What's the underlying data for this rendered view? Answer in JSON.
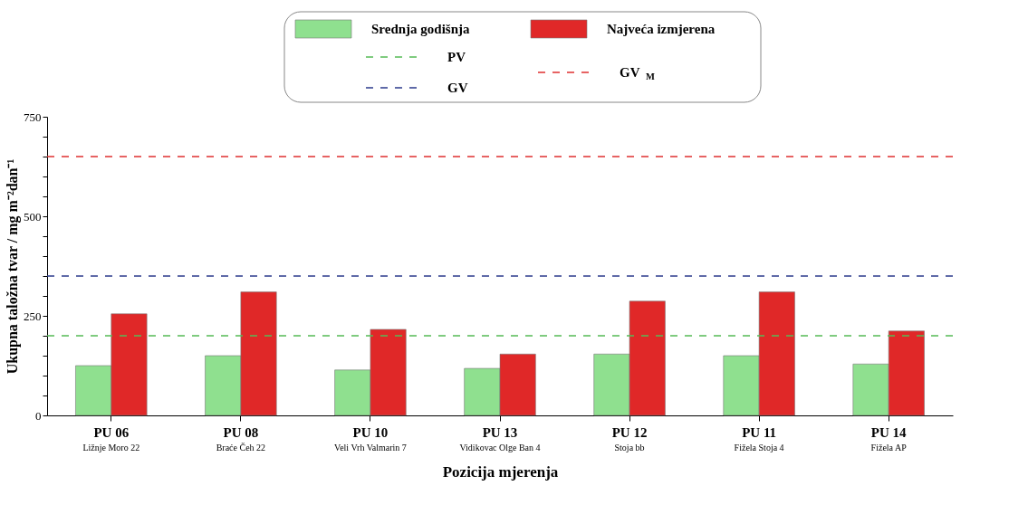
{
  "chart_data": {
    "type": "bar",
    "xlabel": "Pozicija mjerenja",
    "ylabel": "Ukupna taložna tvar / mg m⁻²dan⁻¹",
    "categories": [
      "PU 06\nLižnje Moro 22",
      "PU 08\nBraće Čeh 22",
      "PU 10\nVeli Vrh Valmarin 7",
      "PU 13\nVidikovac Olge Ban 4",
      "PU 12\nStoja bb",
      "PU 11\nFižela Stoja 4",
      "PU 14\nFižela AP"
    ],
    "series": [
      {
        "name": "Srednja godišnja",
        "color": "#8fe08f",
        "values": [
          125,
          150,
          114,
          118,
          154,
          150,
          129
        ]
      },
      {
        "name": "Najveća izmjerena",
        "color": "#e02828",
        "values": [
          255,
          310,
          216,
          154,
          287,
          310,
          212
        ]
      }
    ],
    "ylim": [
      0,
      750
    ],
    "yticks": [
      0,
      {
        "value": 50,
        "label": null
      },
      {
        "value": 100,
        "label": null
      },
      {
        "value": 150,
        "label": null
      },
      {
        "value": 200,
        "label": null
      },
      250,
      {
        "value": 300,
        "label": null
      },
      {
        "value": 350,
        "label": null
      },
      {
        "value": 400,
        "label": null
      },
      {
        "value": 450,
        "label": null
      },
      500,
      {
        "value": 550,
        "label": null
      },
      {
        "value": 600,
        "label": null
      },
      {
        "value": 650,
        "label": null
      },
      {
        "value": 700,
        "label": null
      },
      750
    ],
    "ref_lines": [
      {
        "axis": "y",
        "value": 200,
        "label": "PV",
        "color": "#55bb55",
        "line_style": "dashed"
      },
      {
        "axis": "y",
        "value": 350,
        "label": "GV",
        "color": "#2b3a8c",
        "line_style": "dashed"
      },
      {
        "axis": "y",
        "value": 650,
        "label": "GV$_{M}$",
        "color": "#e03030",
        "line_style": "dashed"
      }
    ],
    "grid": false,
    "legend": "top"
  }
}
